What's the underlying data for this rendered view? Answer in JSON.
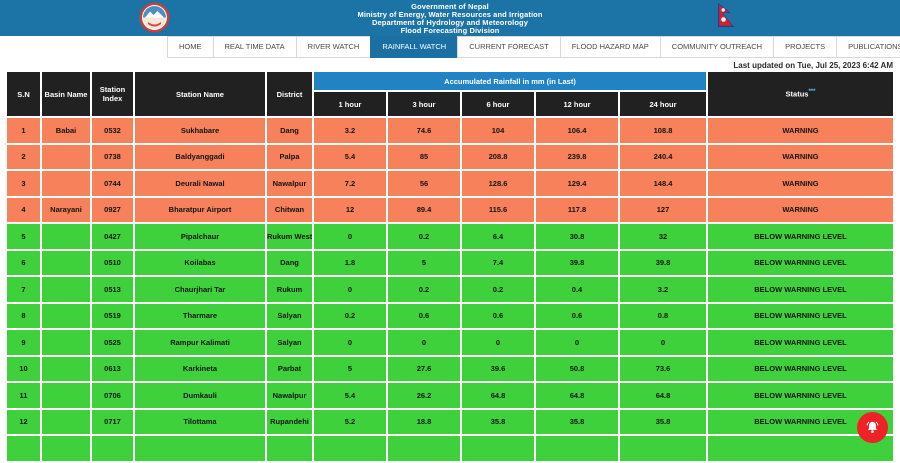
{
  "banner": {
    "lines": [
      "Government of Nepal",
      "Ministry of Energy, Water Resources and Irrigation",
      "Department of Hydrology and Meteorology",
      "Flood Forecasting Division"
    ]
  },
  "nav": {
    "tabs": [
      {
        "label": "HOME",
        "active": false
      },
      {
        "label": "REAL TIME DATA",
        "active": false
      },
      {
        "label": "RIVER WATCH",
        "active": false
      },
      {
        "label": "RAINFALL WATCH",
        "active": true
      },
      {
        "label": "CURRENT FORECAST",
        "active": false
      },
      {
        "label": "FLOOD HAZARD MAP",
        "active": false
      },
      {
        "label": "COMMUNITY OUTREACH",
        "active": false
      },
      {
        "label": "PROJECTS",
        "active": false
      },
      {
        "label": "PUBLICATIONS",
        "active": false
      }
    ]
  },
  "last_updated": "Last updated on Tue, Jul 25, 2023 6:42 AM",
  "table": {
    "columns": [
      "S.N",
      "Basin Name",
      "Station Index",
      "Station Name",
      "District"
    ],
    "rainfall_group_header": "Accumulated Rainfall in mm (in Last)",
    "hour_headers": [
      "1 hour",
      "3 hour",
      "6 hour",
      "12 hour",
      "24 hour"
    ],
    "status_header": "Status",
    "status_note": "***",
    "rows": [
      {
        "sn": "1",
        "basin": "Babai",
        "station_index": "0532",
        "station_name": "Sukhabare",
        "district": "Dang",
        "rain_1h": "3.2",
        "rain_3h": "74.6",
        "rain_6h": "104",
        "rain_12h": "106.4",
        "rain_24h": "108.8",
        "status": "WARNING",
        "level": "warning"
      },
      {
        "sn": "2",
        "basin": "",
        "station_index": "0738",
        "station_name": "Baldyanggadi",
        "district": "Palpa",
        "rain_1h": "5.4",
        "rain_3h": "85",
        "rain_6h": "208.8",
        "rain_12h": "239.8",
        "rain_24h": "240.4",
        "status": "WARNING",
        "level": "warning"
      },
      {
        "sn": "3",
        "basin": "",
        "station_index": "0744",
        "station_name": "Deurali Nawal",
        "district": "Nawalpur",
        "rain_1h": "7.2",
        "rain_3h": "56",
        "rain_6h": "128.6",
        "rain_12h": "129.4",
        "rain_24h": "148.4",
        "status": "WARNING",
        "level": "warning"
      },
      {
        "sn": "4",
        "basin": "Narayani",
        "station_index": "0927",
        "station_name": "Bharatpur Airport",
        "district": "Chitwan",
        "rain_1h": "12",
        "rain_3h": "89.4",
        "rain_6h": "115.6",
        "rain_12h": "117.8",
        "rain_24h": "127",
        "status": "WARNING",
        "level": "warning"
      },
      {
        "sn": "5",
        "basin": "",
        "station_index": "0427",
        "station_name": "Pipalchaur",
        "district": "Rukum West",
        "rain_1h": "0",
        "rain_3h": "0.2",
        "rain_6h": "6.4",
        "rain_12h": "30.8",
        "rain_24h": "32",
        "status": "BELOW WARNING LEVEL",
        "level": "below"
      },
      {
        "sn": "6",
        "basin": "",
        "station_index": "0510",
        "station_name": "Koilabas",
        "district": "Dang",
        "rain_1h": "1.8",
        "rain_3h": "5",
        "rain_6h": "7.4",
        "rain_12h": "39.8",
        "rain_24h": "39.8",
        "status": "BELOW WARNING LEVEL",
        "level": "below"
      },
      {
        "sn": "7",
        "basin": "",
        "station_index": "0513",
        "station_name": "Chaurjhari Tar",
        "district": "Rukum",
        "rain_1h": "0",
        "rain_3h": "0.2",
        "rain_6h": "0.2",
        "rain_12h": "0.4",
        "rain_24h": "3.2",
        "status": "BELOW WARNING LEVEL",
        "level": "below"
      },
      {
        "sn": "8",
        "basin": "",
        "station_index": "0519",
        "station_name": "Tharmare",
        "district": "Salyan",
        "rain_1h": "0.2",
        "rain_3h": "0.6",
        "rain_6h": "0.6",
        "rain_12h": "0.6",
        "rain_24h": "0.8",
        "status": "BELOW WARNING LEVEL",
        "level": "below"
      },
      {
        "sn": "9",
        "basin": "",
        "station_index": "0525",
        "station_name": "Rampur Kalimati",
        "district": "Salyan",
        "rain_1h": "0",
        "rain_3h": "0",
        "rain_6h": "0",
        "rain_12h": "0",
        "rain_24h": "0",
        "status": "BELOW WARNING LEVEL",
        "level": "below"
      },
      {
        "sn": "10",
        "basin": "",
        "station_index": "0613",
        "station_name": "Karkineta",
        "district": "Parbat",
        "rain_1h": "5",
        "rain_3h": "27.6",
        "rain_6h": "39.6",
        "rain_12h": "50.8",
        "rain_24h": "73.6",
        "status": "BELOW WARNING LEVEL",
        "level": "below"
      },
      {
        "sn": "11",
        "basin": "",
        "station_index": "0706",
        "station_name": "Dumkauli",
        "district": "Nawalpur",
        "rain_1h": "5.4",
        "rain_3h": "26.2",
        "rain_6h": "64.8",
        "rain_12h": "64.8",
        "rain_24h": "64.8",
        "status": "BELOW WARNING LEVEL",
        "level": "below"
      },
      {
        "sn": "12",
        "basin": "",
        "station_index": "0717",
        "station_name": "Tilottama",
        "district": "Rupandehi",
        "rain_1h": "5.2",
        "rain_3h": "18.8",
        "rain_6h": "35.8",
        "rain_12h": "35.8",
        "rain_24h": "35.8",
        "status": "BELOW WARNING LEVEL",
        "level": "below"
      }
    ],
    "partial_row_visible": true
  },
  "colors": {
    "banner_blue": "#1c74a6",
    "active_tab": "#1a6fa3",
    "group_header_blue": "#2183c4",
    "header_dark": "#212121",
    "warning_orange": "#f6815a",
    "below_green": "#3ed13c",
    "fab_red": "#ee2227"
  }
}
